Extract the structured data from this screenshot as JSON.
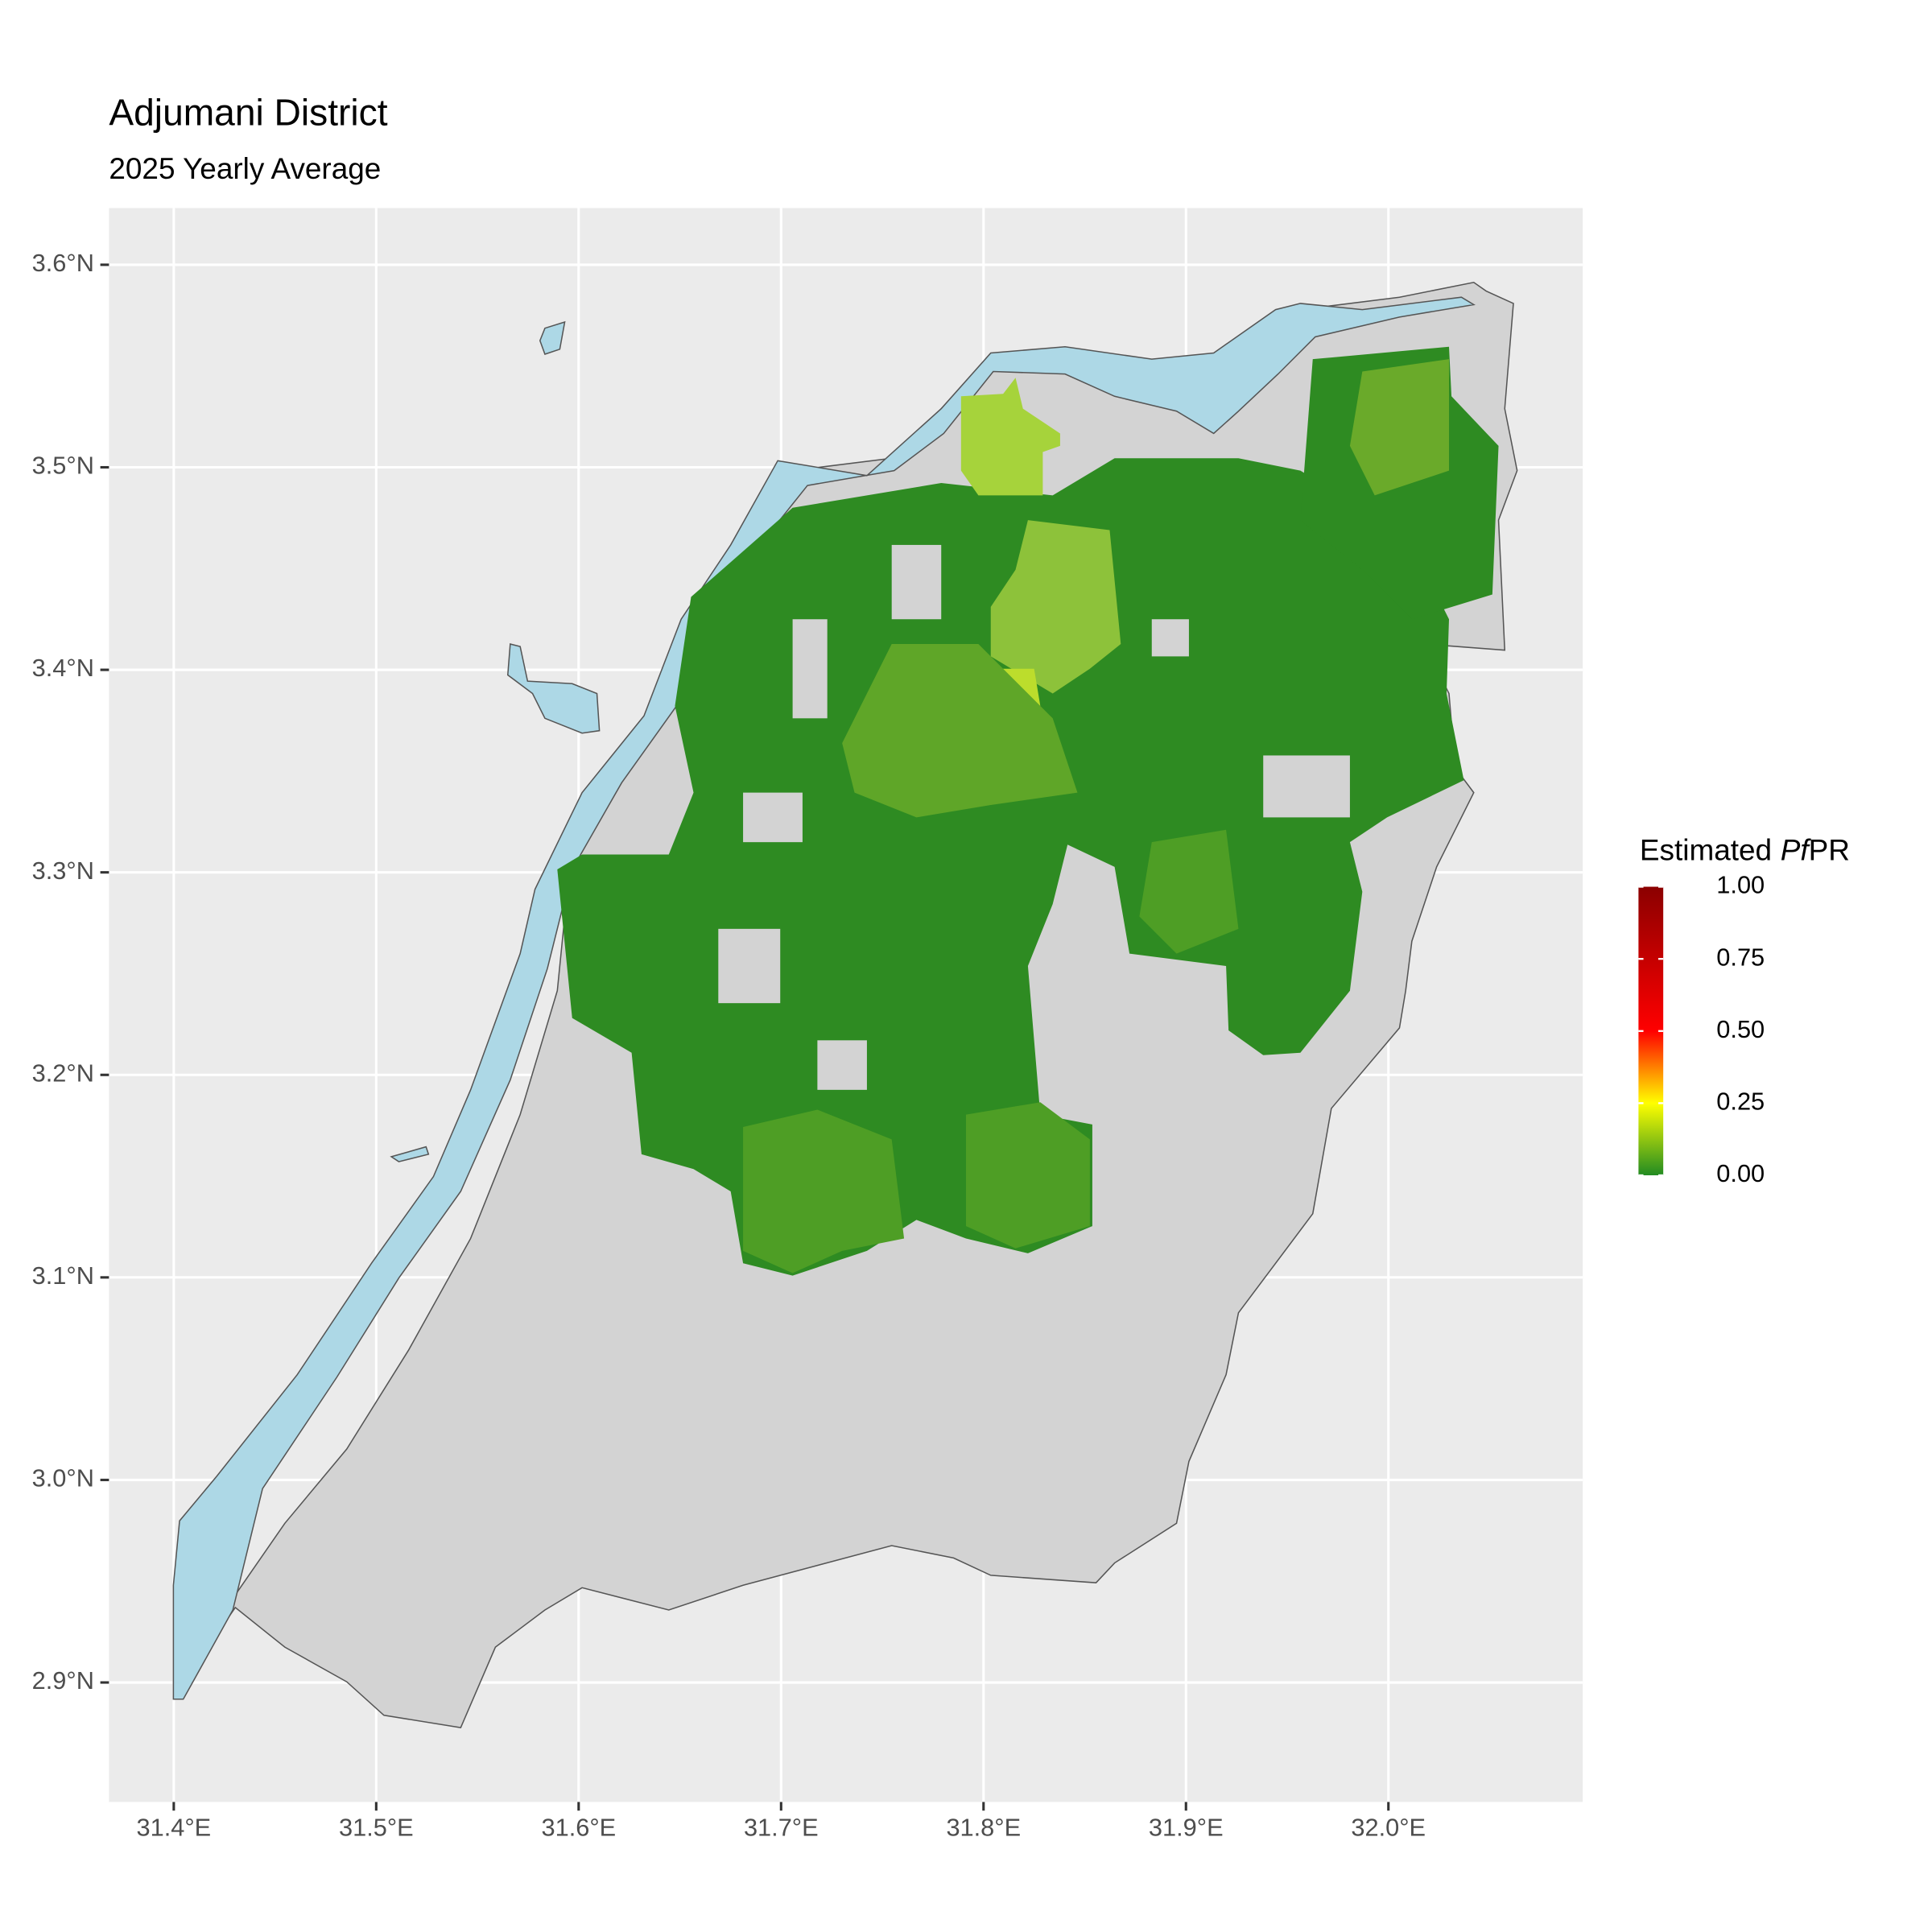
{
  "chart_data": {
    "type": "map",
    "title": "Adjumani District",
    "subtitle": "2025 Yearly Average",
    "xlim": [
      31.368,
      32.096
    ],
    "ylim": [
      2.841,
      3.628
    ],
    "xticks": [
      {
        "value": 31.4,
        "label": "31.4°E"
      },
      {
        "value": 31.5,
        "label": "31.5°E"
      },
      {
        "value": 31.6,
        "label": "31.6°E"
      },
      {
        "value": 31.7,
        "label": "31.7°E"
      },
      {
        "value": 31.8,
        "label": "31.8°E"
      },
      {
        "value": 31.9,
        "label": "31.9°E"
      },
      {
        "value": 32.0,
        "label": "32.0°E"
      }
    ],
    "yticks": [
      {
        "value": 2.9,
        "label": "2.9°N"
      },
      {
        "value": 3.0,
        "label": "3.0°N"
      },
      {
        "value": 3.1,
        "label": "3.1°N"
      },
      {
        "value": 3.2,
        "label": "3.2°N"
      },
      {
        "value": 3.3,
        "label": "3.3°N"
      },
      {
        "value": 3.4,
        "label": "3.4°N"
      },
      {
        "value": 3.5,
        "label": "3.5°N"
      },
      {
        "value": 3.6,
        "label": "3.6°N"
      }
    ],
    "grid": true,
    "legend": {
      "title": [
        "Estimated",
        "Pf",
        "PR"
      ],
      "limits": [
        0,
        1
      ],
      "ticks": [
        {
          "value": 0,
          "label": "0.00"
        },
        {
          "value": 0.25,
          "label": "0.25"
        },
        {
          "value": 0.5,
          "label": "0.50"
        },
        {
          "value": 0.75,
          "label": "0.75"
        },
        {
          "value": 1,
          "label": "1.00"
        }
      ],
      "color_stops": [
        [
          0,
          "#228b22"
        ],
        [
          0.25,
          "#ffff00"
        ],
        [
          0.5,
          "#ff0000"
        ],
        [
          1,
          "#8b0000"
        ]
      ]
    }
  }
}
